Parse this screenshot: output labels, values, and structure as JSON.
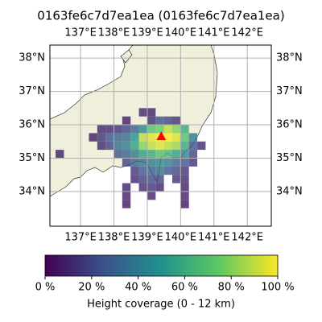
{
  "chart_data": {
    "type": "heatmap-map",
    "title": "0163fe6c7d7ea1ea (0163fe6c7d7ea1ea)",
    "xlim": [
      136.08,
      142.72
    ],
    "ylim": [
      32.96,
      38.39
    ],
    "xticks": [
      {
        "value": 137,
        "label": "137°E"
      },
      {
        "value": 138,
        "label": "138°E"
      },
      {
        "value": 139,
        "label": "139°E"
      },
      {
        "value": 140,
        "label": "140°E"
      },
      {
        "value": 141,
        "label": "141°E"
      },
      {
        "value": 142,
        "label": "142°E"
      }
    ],
    "yticks": [
      {
        "value": 34,
        "label": "34°N"
      },
      {
        "value": 35,
        "label": "35°N"
      },
      {
        "value": 36,
        "label": "36°N"
      },
      {
        "value": 37,
        "label": "37°N"
      },
      {
        "value": 38,
        "label": "38°N"
      }
    ],
    "grid": true,
    "colormap": "viridis",
    "cell_size": 0.25,
    "marker": [
      139.42,
      35.66
    ],
    "marker_color": "#ff0000",
    "cells": [
      [
        138.75,
        36.25,
        12
      ],
      [
        139,
        36.25,
        10
      ],
      [
        138.25,
        36,
        8
      ],
      [
        139,
        36,
        12
      ],
      [
        139.25,
        36,
        25
      ],
      [
        139.5,
        36,
        20
      ],
      [
        139.75,
        36,
        15
      ],
      [
        137.5,
        35.75,
        10
      ],
      [
        137.75,
        35.75,
        12
      ],
      [
        138,
        35.75,
        15
      ],
      [
        138.25,
        35.75,
        20
      ],
      [
        138.5,
        35.75,
        30
      ],
      [
        138.75,
        35.75,
        45
      ],
      [
        139,
        35.75,
        70
      ],
      [
        139.25,
        35.75,
        75
      ],
      [
        139.5,
        35.75,
        90
      ],
      [
        139.75,
        35.75,
        80
      ],
      [
        140,
        35.75,
        60
      ],
      [
        137.25,
        35.5,
        8
      ],
      [
        137.5,
        35.5,
        15
      ],
      [
        137.75,
        35.5,
        25
      ],
      [
        138,
        35.5,
        30
      ],
      [
        138.25,
        35.5,
        35
      ],
      [
        138.5,
        35.5,
        50
      ],
      [
        138.75,
        35.5,
        90
      ],
      [
        139,
        35.5,
        95
      ],
      [
        139.25,
        35.5,
        100
      ],
      [
        139.5,
        35.5,
        100
      ],
      [
        139.75,
        35.5,
        95
      ],
      [
        140,
        35.5,
        70
      ],
      [
        140.25,
        35.5,
        40
      ],
      [
        137.5,
        35.25,
        12
      ],
      [
        137.75,
        35.25,
        20
      ],
      [
        138,
        35.25,
        35
      ],
      [
        138.25,
        35.25,
        40
      ],
      [
        138.5,
        35.25,
        55
      ],
      [
        138.75,
        35.25,
        80
      ],
      [
        139,
        35.25,
        90
      ],
      [
        139.25,
        35.25,
        95
      ],
      [
        139.5,
        35.25,
        90
      ],
      [
        139.75,
        35.25,
        85
      ],
      [
        140,
        35.25,
        60
      ],
      [
        140.25,
        35.25,
        25
      ],
      [
        140.5,
        35.25,
        12
      ],
      [
        136.25,
        35,
        10
      ],
      [
        138,
        35,
        25
      ],
      [
        138.25,
        35,
        30
      ],
      [
        138.5,
        35,
        40
      ],
      [
        138.75,
        35,
        55
      ],
      [
        139,
        35,
        60
      ],
      [
        139.25,
        35,
        70
      ],
      [
        139.5,
        35,
        65
      ],
      [
        139.75,
        35,
        55
      ],
      [
        140,
        35,
        45
      ],
      [
        140.25,
        35,
        20
      ],
      [
        138.25,
        34.75,
        20
      ],
      [
        138.5,
        34.75,
        30
      ],
      [
        138.75,
        34.75,
        35
      ],
      [
        139,
        34.75,
        40
      ],
      [
        139.25,
        34.75,
        45
      ],
      [
        139.5,
        34.75,
        40
      ],
      [
        139.75,
        34.75,
        30
      ],
      [
        140,
        34.75,
        25
      ],
      [
        140.25,
        34.75,
        15
      ],
      [
        138.5,
        34.5,
        15
      ],
      [
        138.75,
        34.5,
        25
      ],
      [
        139,
        34.5,
        30
      ],
      [
        139.25,
        34.5,
        35
      ],
      [
        139.5,
        34.5,
        25
      ],
      [
        139.75,
        34.5,
        20
      ],
      [
        140,
        34.5,
        15
      ],
      [
        138.5,
        34.25,
        12
      ],
      [
        138.75,
        34.25,
        18
      ],
      [
        139,
        34.25,
        22
      ],
      [
        139.25,
        34.25,
        20
      ],
      [
        139.75,
        34.25,
        15
      ],
      [
        140,
        34.25,
        12
      ],
      [
        138.25,
        34,
        10
      ],
      [
        138.75,
        34,
        12
      ],
      [
        139,
        34,
        15
      ],
      [
        139.25,
        34,
        10
      ],
      [
        140,
        34,
        8
      ],
      [
        138.25,
        33.75,
        8
      ],
      [
        139,
        33.75,
        10
      ],
      [
        140,
        33.75,
        8
      ],
      [
        138.25,
        33.5,
        6
      ],
      [
        140,
        33.5,
        5
      ]
    ],
    "colorbar": {
      "label": "Height coverage (0 - 12 km)",
      "lim": [
        0,
        100
      ],
      "ticks": [
        {
          "value": 0,
          "label": "0 %"
        },
        {
          "value": 20,
          "label": "20 %"
        },
        {
          "value": 40,
          "label": "40 %"
        },
        {
          "value": 60,
          "label": "60 %"
        },
        {
          "value": 80,
          "label": "80 %"
        },
        {
          "value": 100,
          "label": "100 %"
        }
      ]
    }
  }
}
